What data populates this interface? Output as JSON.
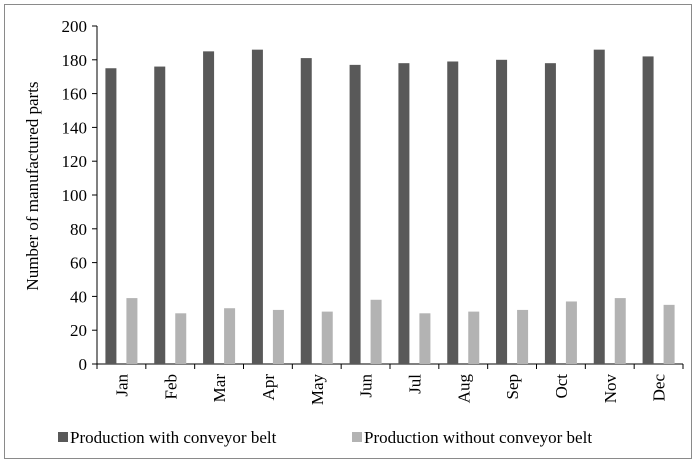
{
  "chart_data": {
    "type": "bar",
    "title": "",
    "xlabel": "",
    "ylabel": "Number of manufactured parts",
    "ylim": [
      0,
      200
    ],
    "yticks": [
      0,
      20,
      40,
      60,
      80,
      100,
      120,
      140,
      160,
      180,
      200
    ],
    "grid": false,
    "legend_position": "bottom",
    "categories": [
      "Jan",
      "Feb",
      "Mar",
      "Apr",
      "May",
      "Jun",
      "Jul",
      "Aug",
      "Sep",
      "Oct",
      "Nov",
      "Dec"
    ],
    "series": [
      {
        "name": "Production with conveyor belt",
        "color": "#595959",
        "values": [
          175,
          176,
          185,
          186,
          181,
          177,
          178,
          179,
          180,
          178,
          186,
          182
        ]
      },
      {
        "name": "Production without conveyor belt",
        "color": "#b3b3b3",
        "values": [
          39,
          30,
          33,
          32,
          31,
          38,
          30,
          31,
          32,
          37,
          39,
          35
        ]
      }
    ]
  }
}
